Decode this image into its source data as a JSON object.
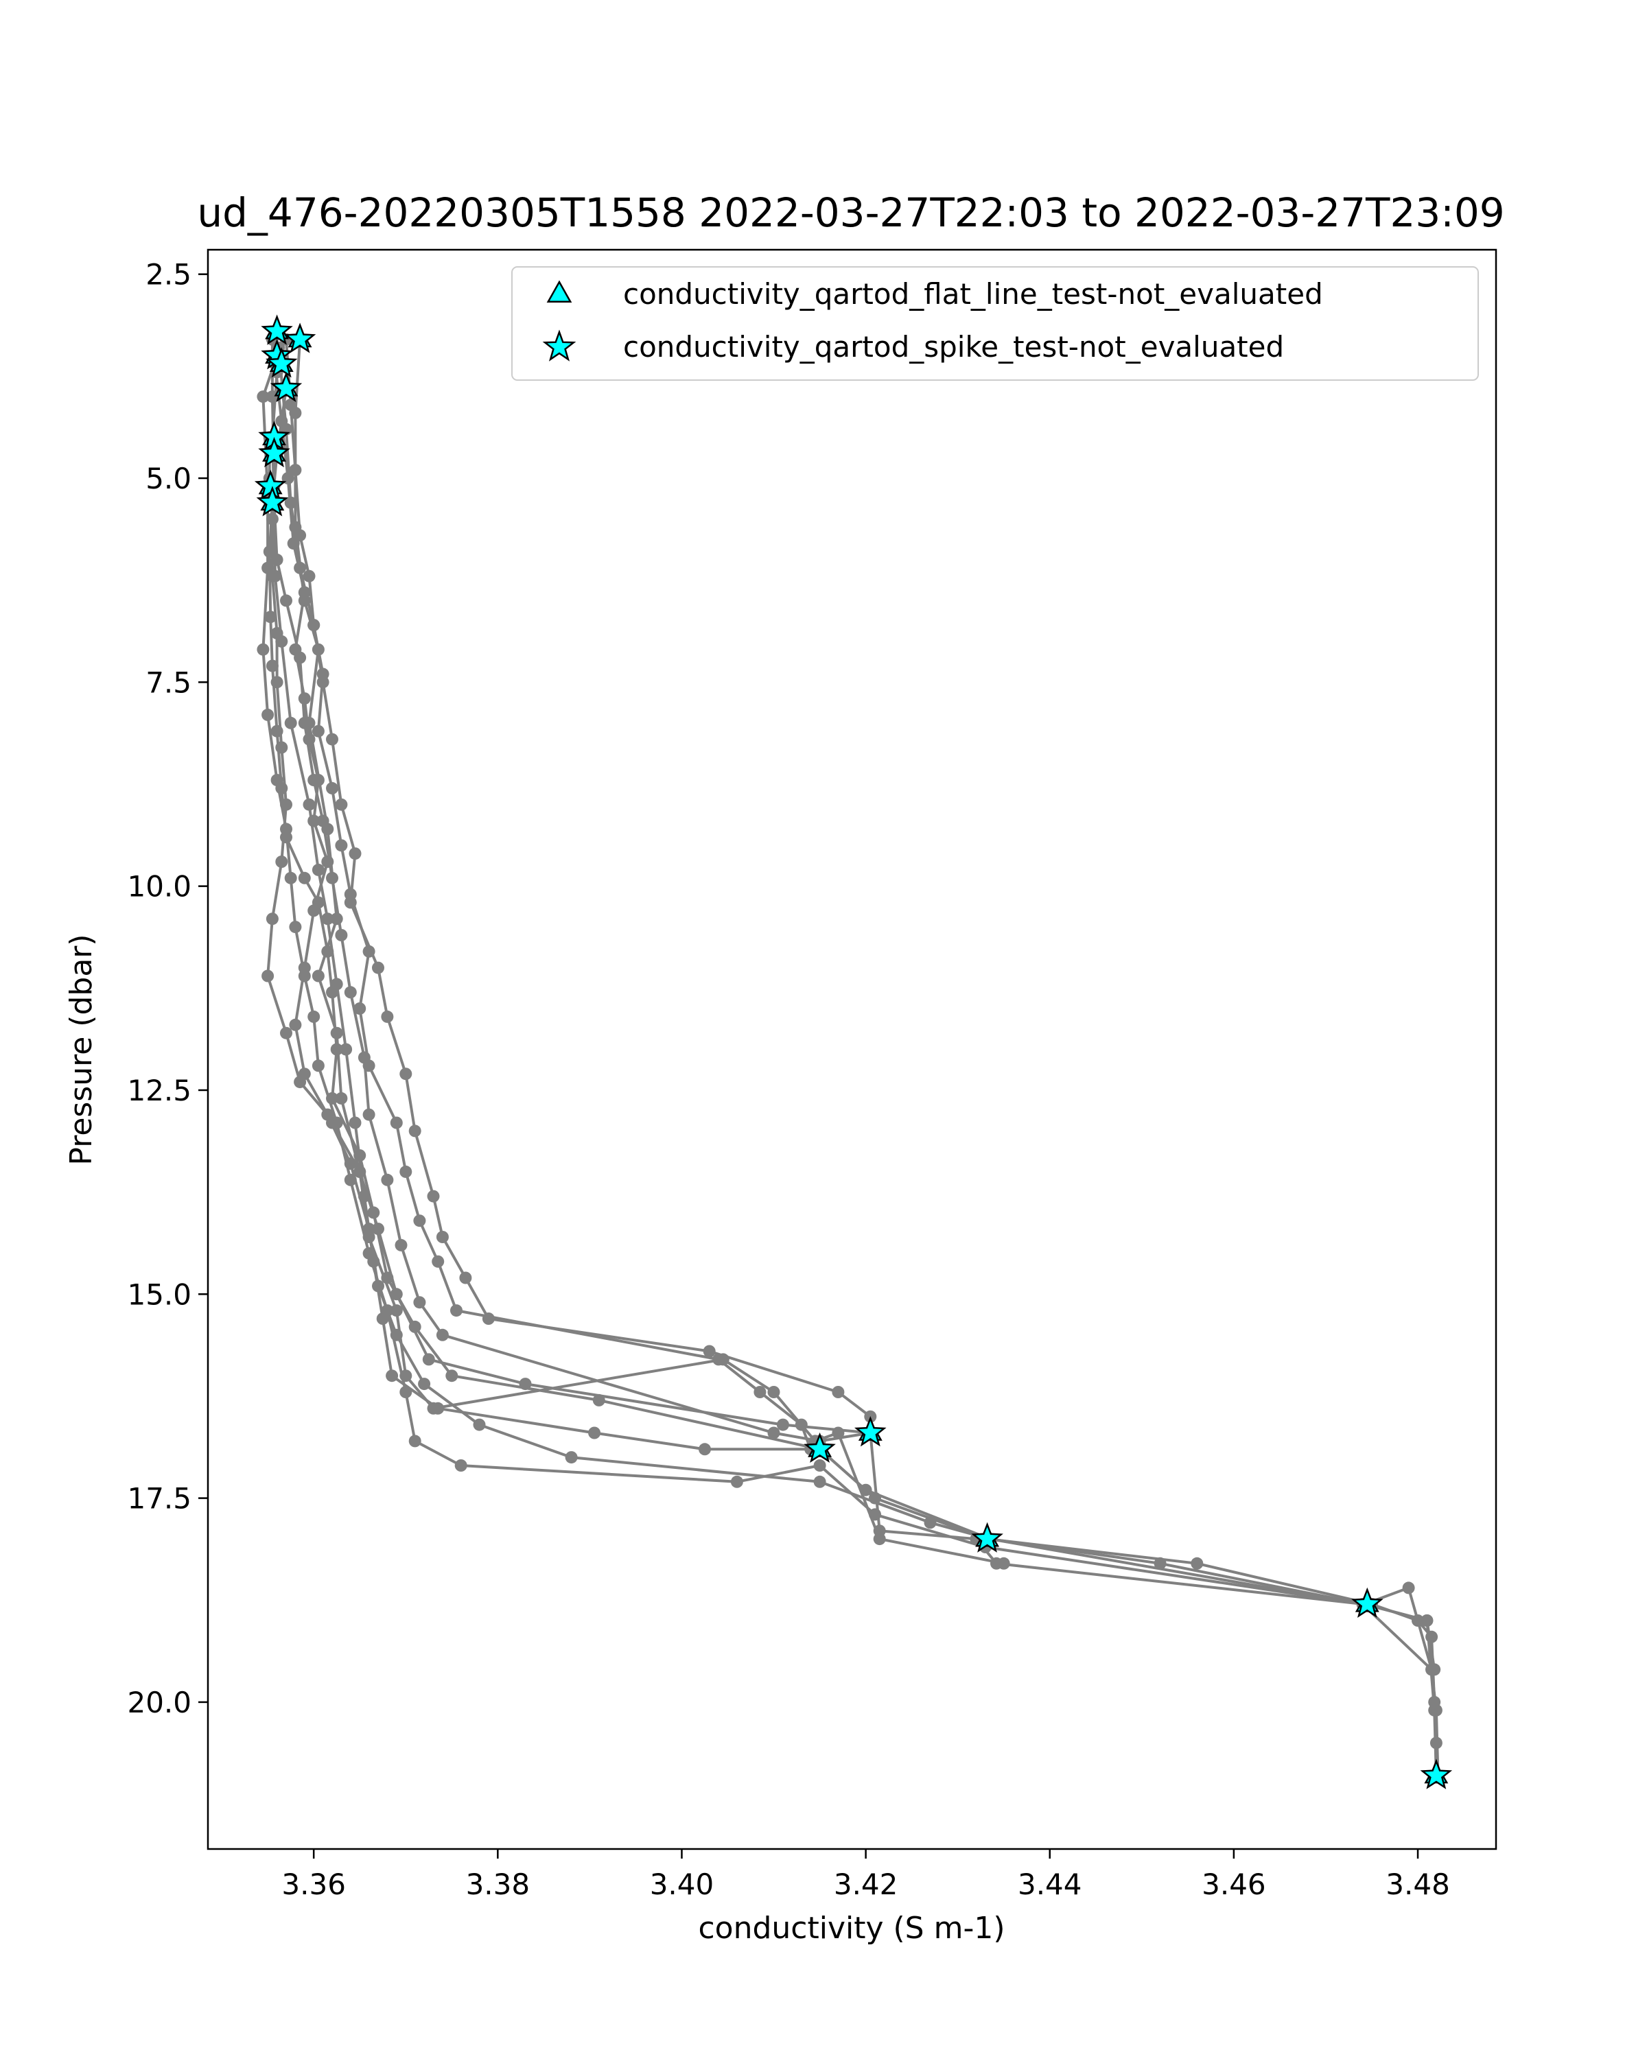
{
  "chart_data": {
    "type": "scatter",
    "title": "ud_476-20220305T1558 2022-03-27T22:03 to 2022-03-27T23:09",
    "xlabel": "conductivity (S m-1)",
    "ylabel": "Pressure (dbar)",
    "xlim": [
      3.3485,
      3.4885
    ],
    "ylim": [
      21.8,
      2.2
    ],
    "y_inverted": true,
    "grid": false,
    "legend_placement": "upper-right",
    "xticks": [
      3.36,
      3.38,
      3.4,
      3.42,
      3.44,
      3.46,
      3.48
    ],
    "xtick_labels": [
      "3.36",
      "3.38",
      "3.40",
      "3.42",
      "3.44",
      "3.46",
      "3.48"
    ],
    "yticks": [
      2.5,
      5.0,
      7.5,
      10.0,
      12.5,
      15.0,
      17.5,
      20.0
    ],
    "ytick_labels": [
      "2.5",
      "5.0",
      "7.5",
      "10.0",
      "12.5",
      "15.0",
      "17.5",
      "20.0"
    ],
    "profile_color": "#808080",
    "series": [
      {
        "kind": "profiles",
        "profiles": [
          [
            [
              3.3555,
              3.3
            ],
            [
              3.3555,
              4.0
            ],
            [
              3.3557,
              5.1
            ],
            [
              3.3558,
              6.2
            ],
            [
              3.3565,
              7.0
            ],
            [
              3.3575,
              8.0
            ],
            [
              3.3595,
              9.0
            ],
            [
              3.3605,
              9.8
            ],
            [
              3.3615,
              10.4
            ],
            [
              3.3625,
              11.2
            ],
            [
              3.3635,
              12.0
            ],
            [
              3.3645,
              12.9
            ],
            [
              3.3655,
              13.8
            ],
            [
              3.3665,
              14.6
            ],
            [
              3.3675,
              15.3
            ],
            [
              3.3685,
              16.0
            ],
            [
              3.3735,
              16.4
            ],
            [
              3.3905,
              16.7
            ],
            [
              3.4025,
              16.9
            ],
            [
              3.415,
              16.9
            ],
            [
              3.421,
              17.5
            ],
            [
              3.4332,
              18.0
            ],
            [
              3.456,
              18.3
            ],
            [
              3.475,
              18.8
            ],
            [
              3.48,
              19.0
            ],
            [
              3.4815,
              19.2
            ],
            [
              3.4818,
              20.0
            ],
            [
              3.482,
              20.5
            ],
            [
              3.482,
              20.9
            ]
          ],
          [
            [
              3.3585,
              3.3
            ],
            [
              3.358,
              4.2
            ],
            [
              3.358,
              5.6
            ],
            [
              3.359,
              6.5
            ],
            [
              3.3605,
              7.1
            ],
            [
              3.3595,
              8.0
            ],
            [
              3.3615,
              9.3
            ],
            [
              3.3625,
              10.4
            ],
            [
              3.3605,
              11.1
            ],
            [
              3.3625,
              11.8
            ],
            [
              3.363,
              12.6
            ],
            [
              3.365,
              13.5
            ],
            [
              3.367,
              14.2
            ],
            [
              3.369,
              15.0
            ],
            [
              3.3725,
              15.8
            ],
            [
              3.383,
              16.1
            ],
            [
              3.411,
              16.6
            ],
            [
              3.4205,
              16.7
            ],
            [
              3.4215,
              17.9
            ],
            [
              3.432,
              18.0
            ],
            [
              3.4342,
              18.3
            ],
            [
              3.4742,
              18.8
            ],
            [
              3.479,
              18.6
            ],
            [
              3.4815,
              19.6
            ],
            [
              3.482,
              20.1
            ],
            [
              3.4822,
              20.9
            ]
          ],
          [
            [
              3.356,
              3.5
            ],
            [
              3.3545,
              4.0
            ],
            [
              3.355,
              5.2
            ],
            [
              3.355,
              6.1
            ],
            [
              3.3545,
              7.1
            ],
            [
              3.355,
              7.9
            ],
            [
              3.356,
              8.7
            ],
            [
              3.357,
              9.3
            ],
            [
              3.3575,
              9.9
            ],
            [
              3.358,
              10.5
            ],
            [
              3.359,
              11.1
            ],
            [
              3.36,
              11.6
            ],
            [
              3.3605,
              12.2
            ],
            [
              3.3625,
              12.9
            ],
            [
              3.364,
              13.6
            ],
            [
              3.366,
              14.5
            ],
            [
              3.368,
              15.2
            ],
            [
              3.37,
              16.2
            ],
            [
              3.371,
              16.8
            ],
            [
              3.376,
              17.1
            ],
            [
              3.406,
              17.3
            ],
            [
              3.415,
              17.1
            ],
            [
              3.421,
              17.7
            ],
            [
              3.433,
              18.1
            ],
            [
              3.4742,
              18.8
            ],
            [
              3.481,
              19.0
            ],
            [
              3.4818,
              19.6
            ]
          ],
          [
            [
              3.357,
              3.9
            ],
            [
              3.356,
              4.7
            ],
            [
              3.3555,
              5.3
            ],
            [
              3.3552,
              5.9
            ],
            [
              3.3553,
              6.7
            ],
            [
              3.3555,
              7.3
            ],
            [
              3.356,
              8.1
            ],
            [
              3.3565,
              8.8
            ],
            [
              3.357,
              9.4
            ],
            [
              3.359,
              9.9
            ],
            [
              3.3605,
              10.2
            ],
            [
              3.3615,
              10.8
            ],
            [
              3.362,
              11.3
            ],
            [
              3.3625,
              12.0
            ],
            [
              3.362,
              12.6
            ],
            [
              3.365,
              13.3
            ],
            [
              3.3665,
              14.0
            ],
            [
              3.368,
              14.8
            ],
            [
              3.371,
              15.4
            ],
            [
              3.375,
              16.0
            ],
            [
              3.391,
              16.3
            ],
            [
              3.415,
              16.9
            ],
            [
              3.42,
              17.4
            ],
            [
              3.4335,
              18.0
            ],
            [
              3.474,
              18.8
            ],
            [
              3.4815,
              19.6
            ]
          ],
          [
            [
              3.3558,
              3.6
            ],
            [
              3.3565,
              4.3
            ],
            [
              3.3572,
              5.0
            ],
            [
              3.3578,
              5.8
            ],
            [
              3.359,
              6.4
            ],
            [
              3.358,
              7.1
            ],
            [
              3.359,
              7.7
            ],
            [
              3.3595,
              8.2
            ],
            [
              3.3605,
              8.7
            ],
            [
              3.36,
              9.2
            ],
            [
              3.3615,
              9.7
            ],
            [
              3.36,
              10.3
            ],
            [
              3.359,
              11.0
            ],
            [
              3.358,
              11.7
            ],
            [
              3.359,
              12.3
            ],
            [
              3.362,
              12.9
            ],
            [
              3.365,
              13.5
            ],
            [
              3.366,
              14.3
            ],
            [
              3.369,
              15.2
            ],
            [
              3.37,
              16.0
            ],
            [
              3.373,
              16.4
            ],
            [
              3.4045,
              15.8
            ],
            [
              3.41,
              16.2
            ],
            [
              3.4145,
              16.8
            ],
            [
              3.417,
              16.7
            ],
            [
              3.4215,
              18.0
            ],
            [
              3.435,
              18.3
            ]
          ],
          [
            [
              3.3552,
              4.5
            ],
            [
              3.3552,
              5.0
            ],
            [
              3.3555,
              5.5
            ],
            [
              3.3555,
              6.2
            ],
            [
              3.356,
              6.9
            ],
            [
              3.356,
              7.5
            ],
            [
              3.3565,
              8.3
            ],
            [
              3.357,
              9.0
            ],
            [
              3.3565,
              9.7
            ],
            [
              3.3555,
              10.4
            ],
            [
              3.355,
              11.1
            ],
            [
              3.357,
              11.8
            ],
            [
              3.3585,
              12.4
            ],
            [
              3.3615,
              12.8
            ],
            [
              3.364,
              13.4
            ],
            [
              3.366,
              14.2
            ],
            [
              3.367,
              14.9
            ],
            [
              3.369,
              15.5
            ],
            [
              3.372,
              16.1
            ],
            [
              3.378,
              16.6
            ],
            [
              3.388,
              17.0
            ],
            [
              3.415,
              17.3
            ],
            [
              3.427,
              17.8
            ],
            [
              3.4335,
              18.0
            ],
            [
              3.452,
              18.3
            ],
            [
              3.4742,
              18.8
            ],
            [
              3.481,
              19.0
            ],
            [
              3.4818,
              20.1
            ],
            [
              3.482,
              20.9
            ]
          ],
          [
            [
              3.357,
              3.3
            ],
            [
              3.3575,
              4.1
            ],
            [
              3.358,
              4.9
            ],
            [
              3.3585,
              5.7
            ],
            [
              3.3595,
              6.2
            ],
            [
              3.36,
              6.8
            ],
            [
              3.361,
              7.4
            ],
            [
              3.3605,
              8.1
            ],
            [
              3.362,
              8.8
            ],
            [
              3.363,
              9.5
            ],
            [
              3.364,
              10.1
            ],
            [
              3.366,
              10.8
            ],
            [
              3.365,
              11.5
            ],
            [
              3.366,
              12.2
            ],
            [
              3.369,
              12.9
            ],
            [
              3.37,
              13.5
            ],
            [
              3.3715,
              14.1
            ],
            [
              3.3735,
              14.6
            ],
            [
              3.3755,
              15.2
            ],
            [
              3.404,
              15.8
            ],
            [
              3.4085,
              16.2
            ],
            [
              3.413,
              16.6
            ],
            [
              3.414,
              16.9
            ]
          ],
          [
            [
              3.3562,
              3.4
            ],
            [
              3.357,
              4.4
            ],
            [
              3.3575,
              5.3
            ],
            [
              3.3585,
              6.1
            ],
            [
              3.36,
              6.8
            ],
            [
              3.361,
              7.5
            ],
            [
              3.362,
              8.2
            ],
            [
              3.363,
              9.0
            ],
            [
              3.3645,
              9.6
            ],
            [
              3.364,
              10.2
            ],
            [
              3.367,
              11.0
            ],
            [
              3.368,
              11.6
            ],
            [
              3.37,
              12.3
            ],
            [
              3.371,
              13.0
            ],
            [
              3.373,
              13.8
            ],
            [
              3.374,
              14.3
            ],
            [
              3.3765,
              14.8
            ],
            [
              3.379,
              15.3
            ],
            [
              3.403,
              15.7
            ],
            [
              3.417,
              16.2
            ],
            [
              3.4205,
              16.5
            ]
          ],
          [
            [
              3.3558,
              3.2
            ],
            [
              3.356,
              3.7
            ],
            [
              3.3555,
              4.5
            ],
            [
              3.3557,
              5.3
            ],
            [
              3.356,
              6.0
            ],
            [
              3.357,
              6.5
            ],
            [
              3.3585,
              7.2
            ],
            [
              3.359,
              8.0
            ],
            [
              3.36,
              8.7
            ],
            [
              3.361,
              9.2
            ],
            [
              3.362,
              9.9
            ],
            [
              3.363,
              10.6
            ],
            [
              3.364,
              11.3
            ],
            [
              3.3655,
              12.1
            ],
            [
              3.366,
              12.8
            ],
            [
              3.368,
              13.6
            ],
            [
              3.3695,
              14.4
            ],
            [
              3.3715,
              15.1
            ],
            [
              3.374,
              15.5
            ],
            [
              3.41,
              16.7
            ],
            [
              3.415,
              16.8
            ],
            [
              3.4205,
              16.7
            ]
          ]
        ]
      },
      {
        "name": "conductivity_qartod_flat_line_test-not_evaluated",
        "marker": "triangle",
        "color": "#00ffff",
        "points": [
          [
            3.356,
            3.2
          ],
          [
            3.3585,
            3.3
          ],
          [
            3.356,
            3.5
          ],
          [
            3.3565,
            3.6
          ],
          [
            3.357,
            3.9
          ],
          [
            3.3557,
            4.5
          ],
          [
            3.3557,
            4.7
          ],
          [
            3.3553,
            5.1
          ],
          [
            3.3555,
            5.3
          ],
          [
            3.4205,
            16.7
          ],
          [
            3.415,
            16.9
          ],
          [
            3.4332,
            18.0
          ],
          [
            3.4745,
            18.8
          ],
          [
            3.482,
            20.9
          ]
        ]
      },
      {
        "name": "conductivity_qartod_spike_test-not_evaluated",
        "marker": "star",
        "color": "#00ffff",
        "points": [
          [
            3.356,
            3.2
          ],
          [
            3.3585,
            3.3
          ],
          [
            3.356,
            3.5
          ],
          [
            3.3565,
            3.6
          ],
          [
            3.357,
            3.9
          ],
          [
            3.3557,
            4.5
          ],
          [
            3.3557,
            4.7
          ],
          [
            3.3553,
            5.1
          ],
          [
            3.3555,
            5.3
          ],
          [
            3.4205,
            16.7
          ],
          [
            3.415,
            16.9
          ],
          [
            3.4332,
            18.0
          ],
          [
            3.4745,
            18.8
          ],
          [
            3.482,
            20.9
          ]
        ]
      }
    ]
  }
}
